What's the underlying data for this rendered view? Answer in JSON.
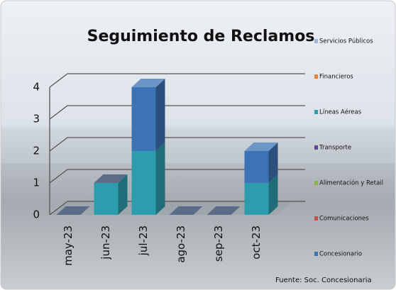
{
  "chart_data": {
    "type": "bar",
    "stacked": true,
    "title": "Seguimiento de Reclamos",
    "source": "Fuente: Soc. Concesionaria",
    "categories": [
      "may-23",
      "jun-23",
      "jul-23",
      "ago-23",
      "sep-23",
      "oct-23"
    ],
    "series": [
      {
        "name": "Servicios Públicos",
        "color": "#9cb8d6",
        "values": [
          0,
          0,
          0,
          0,
          0,
          0
        ]
      },
      {
        "name": "Financieros",
        "color": "#e6843a",
        "values": [
          0,
          0,
          0,
          0,
          0,
          0
        ]
      },
      {
        "name": "Líneas Aéreas",
        "color": "#2d9cad",
        "values": [
          0,
          1,
          2,
          0,
          0,
          1
        ]
      },
      {
        "name": "Transporte",
        "color": "#5b4a8c",
        "values": [
          0,
          0,
          0,
          0,
          0,
          0
        ]
      },
      {
        "name": "Alimentación y Retail",
        "color": "#8db244",
        "values": [
          0,
          0,
          0,
          0,
          0,
          0
        ]
      },
      {
        "name": "Comunicaciones",
        "color": "#c0504d",
        "values": [
          0,
          0,
          0,
          0,
          0,
          0
        ]
      },
      {
        "name": "Concesionario",
        "color": "#3d72b4",
        "values": [
          0,
          0,
          2,
          0,
          0,
          1
        ]
      }
    ],
    "ylim": [
      0,
      4
    ],
    "yticks": [
      0,
      1,
      2,
      3,
      4
    ],
    "grid": true
  }
}
